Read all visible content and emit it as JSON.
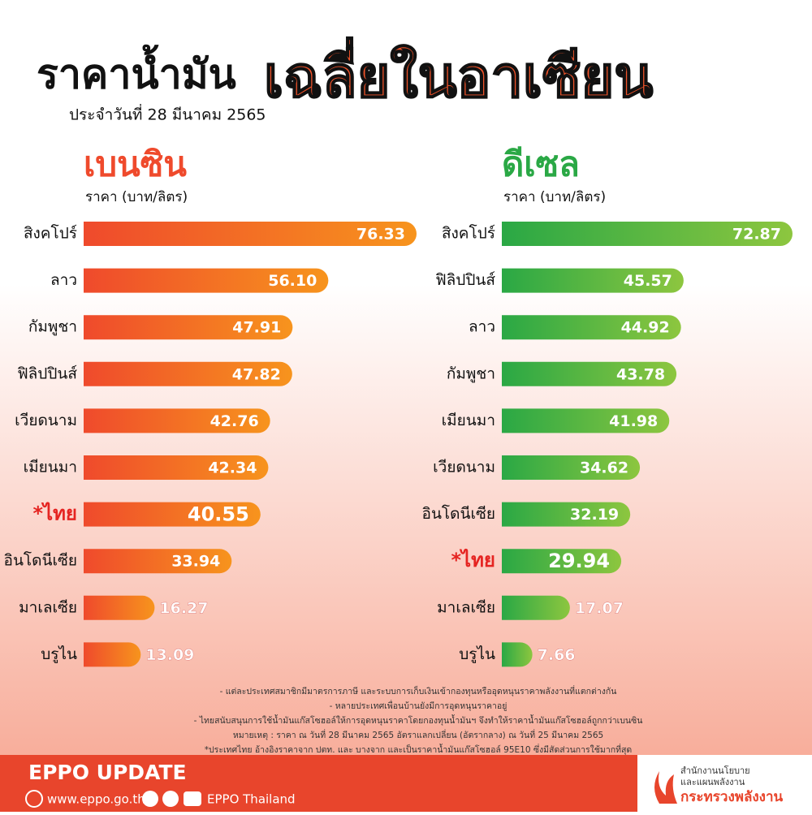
{
  "header": {
    "title": "ราคาน้ำมัน",
    "highlight": "เฉลี่ยในอาเซียน",
    "date": "ประจำวันที่ 28 มีนาคม 2565"
  },
  "chart_data": [
    {
      "type": "bar",
      "orientation": "horizontal",
      "title": "เบนซิน",
      "subtitle": "ราคา (บาท/ลิตร)",
      "categories": [
        "สิงคโปร์",
        "ลาว",
        "กัมพูชา",
        "ฟิลิปปินส์",
        "เวียดนาม",
        "เมียนมา",
        "*ไทย",
        "อินโดนีเซีย",
        "มาเลเซีย",
        "บรูไน"
      ],
      "values": [
        76.33,
        56.1,
        47.91,
        47.82,
        42.76,
        42.34,
        40.55,
        33.94,
        16.27,
        13.09
      ],
      "value_labels": [
        "76.33",
        "56.10",
        "47.91",
        "47.82",
        "42.76",
        "42.34",
        "40.55",
        "33.94",
        "16.27",
        "13.09"
      ],
      "color": [
        "#ef4a2c",
        "#f7941d"
      ]
    },
    {
      "type": "bar",
      "orientation": "horizontal",
      "title": "ดีเซล",
      "subtitle": "ราคา (บาท/ลิตร)",
      "categories": [
        "สิงคโปร์",
        "ฟิลิปปินส์",
        "ลาว",
        "กัมพูชา",
        "เมียนมา",
        "เวียดนาม",
        "อินโดนีเซีย",
        "*ไทย",
        "มาเลเซีย",
        "บรูไน"
      ],
      "values": [
        72.87,
        45.57,
        44.92,
        43.78,
        41.98,
        34.62,
        32.19,
        29.94,
        17.07,
        7.66
      ],
      "value_labels": [
        "72.87",
        "45.57",
        "44.92",
        "43.78",
        "41.98",
        "34.62",
        "32.19",
        "29.94",
        "17.07",
        "7.66"
      ],
      "color": [
        "#2aa845",
        "#8dc63f"
      ]
    }
  ],
  "notes": [
    "- แต่ละประเทศสมาชิกมีมาตรการภาษี และระบบการเก็บเงินเข้ากองทุนหรืออุดหนุนราคาพลังงานที่แตกต่างกัน",
    "- หลายประเทศเพื่อนบ้านยังมีการอุดหนุนราคาอยู่",
    "- ไทยสนับสนุนการใช้น้ำมันแก๊สโซฮอล์ให้การอุดหนุนราคาโดยกองทุนน้ำมันฯ จึงทำให้ราคาน้ำมันแก๊สโซฮอล์ถูกกว่าเบนซิน",
    "หมายเหตุ : ราคา ณ วันที่ 28 มีนาคม 2565 อัตราแลกเปลี่ยน (อัตรากลาง) ณ วันที่ 25 มีนาคม 2565",
    "*ประเทศไทย อ้างอิงราคาจาก ปตท. และ บางจาก และเป็นราคาน้ำมันแก๊สโซฮอล์ 95E10 ซึ่งมีสัดส่วนการใช้มากที่สุด"
  ],
  "footer": {
    "brand": "EPPO UPDATE",
    "website": "www.eppo.go.th",
    "social": "EPPO Thailand",
    "office_line1": "สำนักงานนโยบาย",
    "office_line2": "และแผนพลังงาน",
    "ministry": "กระทรวงพลังงาน"
  }
}
